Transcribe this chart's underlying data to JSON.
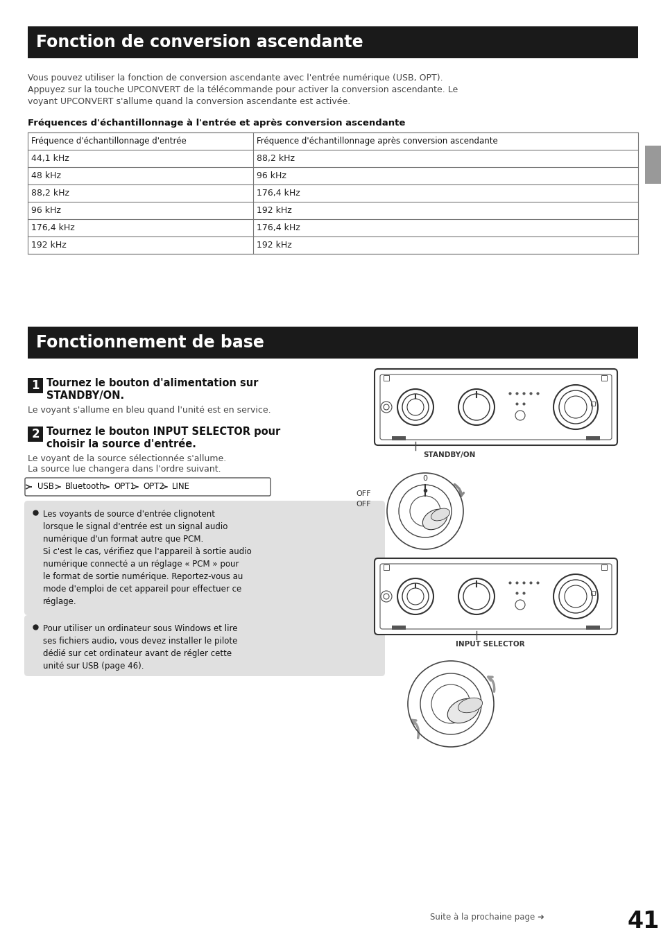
{
  "page_bg": "#ffffff",
  "section1_title": "Fonction de conversion ascendante",
  "section1_bg": "#1a1a1a",
  "section1_text_color": "#ffffff",
  "body_text_color": "#333333",
  "paragraph1_line1": "Vous pouvez utiliser la fonction de conversion ascendante avec l'entrée numérique (USB, OPT).",
  "paragraph1_line2": "Appuyez sur la touche UPCONVERT de la télécommande pour activer la conversion ascendante. Le",
  "paragraph1_line3": "voyant UPCONVERT s'allume quand la conversion ascendante est activée.",
  "table_subtitle": "Fréquences d'échantillonnage à l'entrée et après conversion ascendante",
  "table_col1_header": "Fréquence d'échantillonnage d'entrée",
  "table_col2_header": "Fréquence d'échantillonnage après conversion ascendante",
  "table_rows": [
    [
      "44,1 kHz",
      "88,2 kHz"
    ],
    [
      "48 kHz",
      "96 kHz"
    ],
    [
      "88,2 kHz",
      "176,4 kHz"
    ],
    [
      "96 kHz",
      "192 kHz"
    ],
    [
      "176,4 kHz",
      "176,4 kHz"
    ],
    [
      "192 kHz",
      "192 kHz"
    ]
  ],
  "section2_title": "Fonctionnement de base",
  "section2_bg": "#1a1a1a",
  "section2_text_color": "#ffffff",
  "step1_num": "1",
  "step1_title_line1": "Tournez le bouton d'alimentation sur",
  "step1_title_line2": "STANDBY/ON.",
  "step1_body": "Le voyant s'allume en bleu quand l'unité est en service.",
  "step2_num": "2",
  "step2_title_line1": "Tournez le bouton INPUT SELECTOR pour",
  "step2_title_line2": "choisir la source d'entrée.",
  "step2_body_line1": "Le voyant de la source sélectionnée s'allume.",
  "step2_body_line2": "La source lue changera dans l'ordre suivant.",
  "flow_items": [
    "USB",
    "Bluetooth",
    "OPT1",
    "OPT2",
    "LINE"
  ],
  "note1_text": "Les voyants de source d'entrée clignotent\nlorsque le signal d'entrée est un signal audio\nnumérique d'un format autre que PCM.\nSi c'est le cas, vérifiez que l'appareil à sortie audio\nnumérique connecté a un réglage « PCM » pour\nle format de sortie numérique. Reportez-vous au\nmode d'emploi de cet appareil pour effectuer ce\nréglage.",
  "note2_text": "Pour utiliser un ordinateur sous Windows et lire\nses fichiers audio, vous devez installer le pilote\ndédié sur cet ordinateur avant de régler cette\nunité sur USB (page 46).",
  "note_bg": "#e0e0e0",
  "footer_text": "Suite à la prochaine page ➜",
  "footer_page": "41",
  "right_tab_color": "#999999",
  "table_line_color": "#888888"
}
